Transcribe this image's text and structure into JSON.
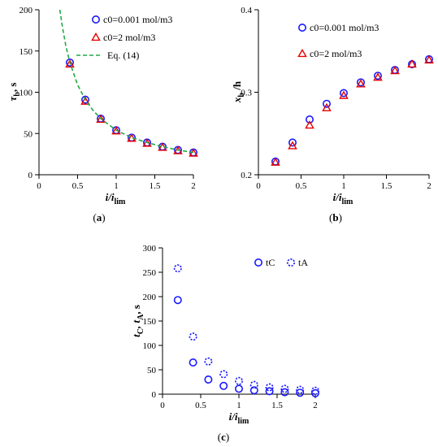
{
  "colors": {
    "blue": "#1a1aff",
    "red": "#e60000",
    "green": "#22aa44",
    "axis": "#000000"
  },
  "chart_data": [
    {
      "panel_label": "(a)",
      "type": "scatter",
      "xlabel": {
        "base": "i/i",
        "sub": "lim"
      },
      "ylabel": {
        "base": "τ",
        "sub": "b",
        "suffix": ", s"
      },
      "xlim": [
        0,
        2
      ],
      "ylim": [
        0,
        200
      ],
      "xticks": [
        "0",
        "0.5",
        "1",
        "1.5",
        "2"
      ],
      "yticks": [
        "0",
        "50",
        "100",
        "150",
        "200"
      ],
      "legend_position": "top-right",
      "series": [
        {
          "name": "c0=0.001 mol/m3",
          "marker": "circle",
          "color": "#1a1aff",
          "x": [
            0.4,
            0.6,
            0.8,
            1.0,
            1.2,
            1.4,
            1.6,
            1.8,
            2.0
          ],
          "y": [
            136,
            91,
            68,
            54,
            45,
            39,
            34,
            30,
            27
          ]
        },
        {
          "name": "c0=2 mol/m3",
          "marker": "triangle",
          "color": "#e60000",
          "x": [
            0.4,
            0.6,
            0.8,
            1.0,
            1.2,
            1.4,
            1.6,
            1.8,
            2.0
          ],
          "y": [
            134,
            89,
            67,
            53,
            44,
            38,
            33,
            29,
            26
          ]
        },
        {
          "name": "Eq. (14)",
          "marker": "dashed-line",
          "color": "#22aa44",
          "x": [
            0.27,
            0.3,
            0.35,
            0.4,
            0.5,
            0.6,
            0.7,
            0.8,
            1.0,
            1.2,
            1.4,
            1.6,
            1.8,
            2.0
          ],
          "y": [
            200,
            181,
            155,
            136,
            109,
            91,
            78,
            68,
            54,
            45,
            39,
            34,
            30,
            27
          ]
        }
      ]
    },
    {
      "panel_label": "(b)",
      "type": "scatter",
      "xlabel": {
        "base": "i/i",
        "sub": "lim"
      },
      "ylabel": {
        "base": "x",
        "sub": "b",
        "suffix": " /h"
      },
      "xlim": [
        0,
        2
      ],
      "ylim": [
        0.2,
        0.4
      ],
      "xticks": [
        "0",
        "0.5",
        "1",
        "1.5",
        "2"
      ],
      "yticks": [
        "0.2",
        "0.3",
        "0.4"
      ],
      "legend_position": "top-right",
      "series": [
        {
          "name": "c0=0.001 mol/m3",
          "marker": "circle",
          "color": "#1a1aff",
          "x": [
            0.2,
            0.4,
            0.6,
            0.8,
            1.0,
            1.2,
            1.4,
            1.6,
            1.8,
            2.0
          ],
          "y": [
            0.216,
            0.239,
            0.267,
            0.286,
            0.299,
            0.312,
            0.32,
            0.327,
            0.334,
            0.34
          ]
        },
        {
          "name": "c0=2 mol/m3",
          "marker": "triangle",
          "color": "#e60000",
          "x": [
            0.2,
            0.4,
            0.6,
            0.8,
            1.0,
            1.2,
            1.4,
            1.6,
            1.8,
            2.0
          ],
          "y": [
            0.215,
            0.235,
            0.26,
            0.281,
            0.296,
            0.31,
            0.318,
            0.326,
            0.334,
            0.339
          ]
        }
      ]
    },
    {
      "panel_label": "(c)",
      "type": "scatter",
      "xlabel": {
        "base": "i/i",
        "sub": "lim"
      },
      "ylabel": {
        "base": "t",
        "sub": "C",
        "mid": ", t",
        "sub2": "A",
        "suffix": ", s"
      },
      "xlim": [
        0,
        2
      ],
      "ylim": [
        0,
        300
      ],
      "xticks": [
        "0",
        "0.5",
        "1",
        "1.5",
        "2"
      ],
      "yticks": [
        "0",
        "50",
        "100",
        "150",
        "200",
        "250",
        "300"
      ],
      "legend_position": "top-right",
      "series": [
        {
          "name": "tC",
          "marker": "circle",
          "color": "#1a1aff",
          "x": [
            0.2,
            0.4,
            0.6,
            0.8,
            1.0,
            1.2,
            1.4,
            1.6,
            1.8,
            2.0
          ],
          "y": [
            193,
            65,
            30,
            17,
            11,
            8,
            6,
            4,
            3,
            2
          ]
        },
        {
          "name": "tA",
          "marker": "dashed-circle",
          "color": "#1a1aff",
          "x": [
            0.2,
            0.4,
            0.6,
            0.8,
            1.0,
            1.2,
            1.4,
            1.6,
            1.8,
            2.0
          ],
          "y": [
            258,
            118,
            67,
            41,
            27,
            19,
            14,
            11,
            9,
            7
          ]
        }
      ]
    }
  ]
}
